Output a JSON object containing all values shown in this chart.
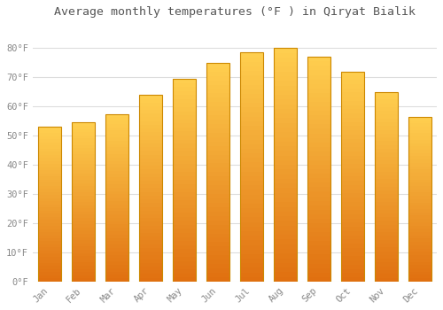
{
  "months": [
    "Jan",
    "Feb",
    "Mar",
    "Apr",
    "May",
    "Jun",
    "Jul",
    "Aug",
    "Sep",
    "Oct",
    "Nov",
    "Dec"
  ],
  "values": [
    53,
    54.5,
    57.5,
    64,
    69.5,
    75,
    78.5,
    80,
    77,
    72,
    65,
    56.5
  ],
  "bar_color_top": "#FFC030",
  "bar_color_bottom": "#F08010",
  "bar_edge_color": "#CC8800",
  "background_color": "#FFFFFF",
  "plot_bg_color": "#FFFFFF",
  "grid_color": "#DDDDDD",
  "title": "Average monthly temperatures (°F ) in Qiryat Bialik",
  "title_fontsize": 9.5,
  "tick_label_color": "#888888",
  "ytick_labels": [
    "0°F",
    "10°F",
    "20°F",
    "30°F",
    "40°F",
    "50°F",
    "60°F",
    "70°F",
    "80°F"
  ],
  "ytick_values": [
    0,
    10,
    20,
    30,
    40,
    50,
    60,
    70,
    80
  ],
  "ylim": [
    0,
    88
  ],
  "font_family": "monospace",
  "bar_width": 0.7
}
